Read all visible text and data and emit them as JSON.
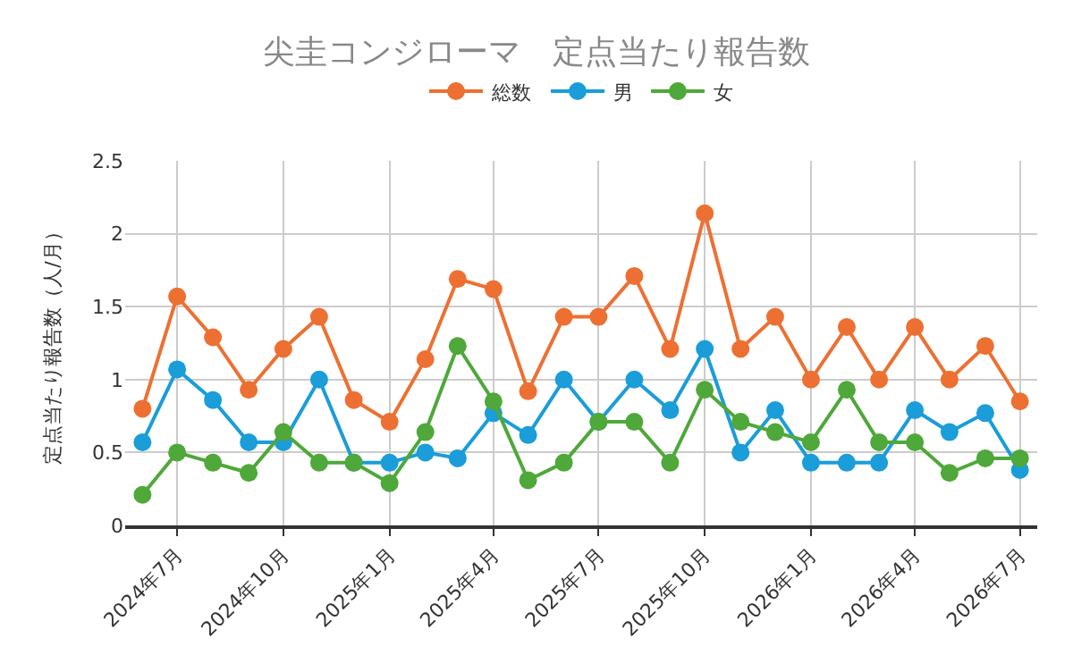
{
  "chart_data": {
    "type": "line",
    "title": "尖圭コンジローマ　定点当たり報告数",
    "ylabel": "定点当たり報告数（人/月）",
    "x": [
      "2024-06",
      "2024-07",
      "2024-08",
      "2024-09",
      "2024-10",
      "2024-11",
      "2024-12",
      "2025-01",
      "2025-02",
      "2025-03",
      "2025-04",
      "2025-05",
      "2025-06",
      "2025-07",
      "2025-08",
      "2025-09",
      "2025-10",
      "2025-11",
      "2025-12",
      "2026-01",
      "2026-02",
      "2026-03",
      "2026-04",
      "2026-05",
      "2026-06",
      "2026-07"
    ],
    "series": [
      {
        "name": "総数",
        "color": "#ed7032",
        "values": [
          0.8,
          1.57,
          1.29,
          0.93,
          1.21,
          1.43,
          0.86,
          0.71,
          1.14,
          1.69,
          1.62,
          0.92,
          1.43,
          1.43,
          1.71,
          1.21,
          2.14,
          1.21,
          1.43,
          1.0,
          1.36,
          1.0,
          1.36,
          1.0,
          1.23,
          0.85
        ]
      },
      {
        "name": "男",
        "color": "#1a9dd9",
        "values": [
          0.57,
          1.07,
          0.86,
          0.57,
          0.57,
          1.0,
          0.43,
          0.43,
          0.5,
          0.46,
          0.77,
          0.62,
          1.0,
          0.71,
          1.0,
          0.79,
          1.21,
          0.5,
          0.79,
          0.43,
          0.43,
          0.43,
          0.79,
          0.64,
          0.77,
          0.38
        ]
      },
      {
        "name": "女",
        "color": "#4fa83a",
        "values": [
          0.21,
          0.5,
          0.43,
          0.36,
          0.64,
          0.43,
          0.43,
          0.29,
          0.64,
          1.23,
          0.85,
          0.31,
          0.43,
          0.71,
          0.71,
          0.43,
          0.93,
          0.71,
          0.64,
          0.57,
          0.93,
          0.57,
          0.57,
          0.36,
          0.46,
          0.46
        ]
      }
    ],
    "xlim": [
      "2024-05-17",
      "2026-07-16"
    ],
    "xticks": [
      {
        "value": "2024-07",
        "label": "2024年7月"
      },
      {
        "value": "2024-10",
        "label": "2024年10月"
      },
      {
        "value": "2025-01",
        "label": "2025年1月"
      },
      {
        "value": "2025-04",
        "label": "2025年4月"
      },
      {
        "value": "2025-07",
        "label": "2025年7月"
      },
      {
        "value": "2025-10",
        "label": "2025年10月"
      },
      {
        "value": "2026-01",
        "label": "2026年1月"
      },
      {
        "value": "2026-04",
        "label": "2026年4月"
      },
      {
        "value": "2026-07",
        "label": "2026年7月"
      }
    ],
    "ylim": [
      0,
      2.5
    ],
    "yticks": [
      0,
      0.5,
      1,
      1.5,
      2,
      2.5
    ],
    "grid": true,
    "legend": "top",
    "marker": "circle",
    "line_style": "solid"
  }
}
